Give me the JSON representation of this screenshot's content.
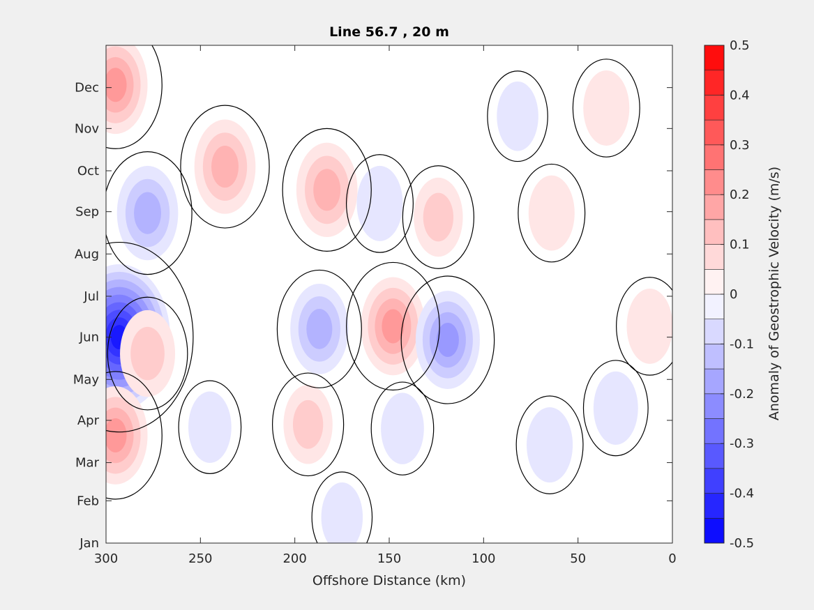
{
  "chart_data": {
    "type": "filled-contour",
    "title": "Line 56.7 , 20 m",
    "xlabel": "Offshore Distance (km)",
    "ylabel": "",
    "xlim": [
      300,
      0
    ],
    "x_reversed": true,
    "x_ticks": [
      "300",
      "250",
      "200",
      "150",
      "100",
      "50",
      "0"
    ],
    "x_tick_values": [
      300,
      250,
      200,
      150,
      100,
      50,
      0
    ],
    "y_ticks": [
      "Jan",
      "Feb",
      "Mar",
      "Apr",
      "May",
      "Jun",
      "Jul",
      "Aug",
      "Sep",
      "Oct",
      "Nov",
      "Dec"
    ],
    "y_tick_values": [
      1,
      32,
      60,
      91,
      121,
      152,
      182,
      213,
      244,
      274,
      305,
      335
    ],
    "ylim": [
      1,
      366
    ],
    "colorbar": {
      "label": "Anomaly of Geostrophic Velocity (m/s)",
      "range": [
        -0.5,
        0.5
      ],
      "step": 0.05,
      "tick_labels": [
        "0.5",
        "0.4",
        "0.3",
        "0.2",
        "0.1",
        "0",
        "-0.1",
        "-0.2",
        "-0.3",
        "-0.4",
        "-0.5"
      ],
      "tick_values": [
        0.5,
        0.4,
        0.3,
        0.2,
        0.1,
        0,
        -0.1,
        -0.2,
        -0.3,
        -0.4,
        -0.5
      ],
      "colormap": "blue-white-red",
      "neg_color": "#0000ff",
      "pos_color": "#ff0000"
    },
    "zero_contour": true,
    "features": [
      {
        "x": 293,
        "y": 152,
        "value": -0.45
      },
      {
        "x": 278,
        "y": 243,
        "value": -0.18
      },
      {
        "x": 278,
        "y": 140,
        "value": 0.14
      },
      {
        "x": 295,
        "y": 80,
        "value": 0.2
      },
      {
        "x": 295,
        "y": 337,
        "value": 0.2
      },
      {
        "x": 237,
        "y": 277,
        "value": 0.18
      },
      {
        "x": 183,
        "y": 260,
        "value": 0.18
      },
      {
        "x": 155,
        "y": 250,
        "value": -0.08
      },
      {
        "x": 124,
        "y": 240,
        "value": 0.1
      },
      {
        "x": 187,
        "y": 158,
        "value": -0.16
      },
      {
        "x": 148,
        "y": 160,
        "value": 0.2
      },
      {
        "x": 119,
        "y": 150,
        "value": -0.2
      },
      {
        "x": 193,
        "y": 88,
        "value": 0.1
      },
      {
        "x": 245,
        "y": 86,
        "value": -0.06
      },
      {
        "x": 143,
        "y": 85,
        "value": -0.06
      },
      {
        "x": 65,
        "y": 73,
        "value": -0.08
      },
      {
        "x": 35,
        "y": 320,
        "value": 0.08
      },
      {
        "x": 64,
        "y": 243,
        "value": 0.08
      },
      {
        "x": 82,
        "y": 314,
        "value": -0.05
      },
      {
        "x": 12,
        "y": 160,
        "value": 0.08
      },
      {
        "x": 30,
        "y": 100,
        "value": -0.07
      },
      {
        "x": 175,
        "y": 20,
        "value": -0.05
      }
    ]
  }
}
